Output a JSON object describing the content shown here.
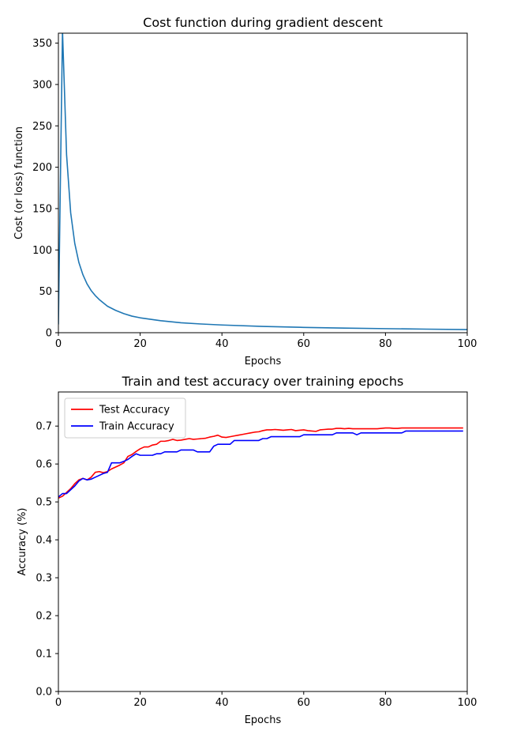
{
  "chart_data": [
    {
      "type": "line",
      "title": "Cost function during gradient descent",
      "xlabel": "Epochs",
      "ylabel": "Cost (or loss) function",
      "xlim": [
        0,
        100
      ],
      "ylim": [
        0,
        362
      ],
      "xticks": [
        "0",
        "20",
        "40",
        "60",
        "80",
        "100"
      ],
      "yticks": [
        "0",
        "50",
        "100",
        "150",
        "200",
        "250",
        "300",
        "350"
      ],
      "grid": false,
      "series": [
        {
          "color": "#1f77b4",
          "x": [
            0,
            1,
            2,
            3,
            4,
            5,
            6,
            7,
            8,
            9,
            10,
            12,
            14,
            16,
            18,
            20,
            25,
            30,
            35,
            40,
            50,
            60,
            70,
            80,
            90,
            100
          ],
          "y": [
            10,
            365,
            215,
            145,
            108,
            85,
            70,
            59,
            51,
            45,
            40,
            32,
            27,
            23,
            20,
            18,
            14.5,
            12,
            10.5,
            9.3,
            7.6,
            6.4,
            5.6,
            4.9,
            4.3,
            3.8
          ]
        }
      ]
    },
    {
      "type": "line",
      "title": "Train and test accuracy over training epochs",
      "xlabel": "Epochs",
      "ylabel": "Accuracy (%)",
      "xlim": [
        0,
        100
      ],
      "ylim": [
        0,
        0.79
      ],
      "xticks": [
        "0",
        "20",
        "40",
        "60",
        "80",
        "100"
      ],
      "yticks": [
        "0.0",
        "0.1",
        "0.2",
        "0.3",
        "0.4",
        "0.5",
        "0.6",
        "0.7"
      ],
      "grid": false,
      "legend": "top-left",
      "series": [
        {
          "name": "Test Accuracy",
          "color": "#ff0000",
          "x": [
            0,
            1,
            2,
            3,
            4,
            5,
            6,
            7,
            8,
            9,
            10,
            11,
            12,
            13,
            14,
            15,
            16,
            17,
            18,
            19,
            20,
            21,
            22,
            23,
            24,
            25,
            26,
            27,
            28,
            29,
            30,
            31,
            32,
            33,
            34,
            35,
            36,
            37,
            38,
            39,
            40,
            41,
            42,
            43,
            44,
            45,
            46,
            47,
            48,
            49,
            50,
            51,
            52,
            53,
            54,
            55,
            56,
            57,
            58,
            59,
            60,
            61,
            62,
            63,
            64,
            65,
            66,
            67,
            68,
            69,
            70,
            71,
            72,
            73,
            74,
            75,
            76,
            77,
            78,
            79,
            80,
            81,
            82,
            83,
            84,
            85,
            86,
            87,
            88,
            89,
            90,
            91,
            92,
            93,
            94,
            95,
            96,
            97,
            98,
            99
          ],
          "y": [
            0.51,
            0.515,
            0.525,
            0.535,
            0.548,
            0.558,
            0.562,
            0.558,
            0.565,
            0.578,
            0.58,
            0.577,
            0.58,
            0.587,
            0.592,
            0.597,
            0.603,
            0.62,
            0.625,
            0.633,
            0.64,
            0.645,
            0.645,
            0.65,
            0.652,
            0.66,
            0.66,
            0.662,
            0.665,
            0.662,
            0.663,
            0.665,
            0.667,
            0.665,
            0.666,
            0.667,
            0.668,
            0.671,
            0.673,
            0.676,
            0.671,
            0.67,
            0.672,
            0.674,
            0.676,
            0.678,
            0.68,
            0.682,
            0.684,
            0.685,
            0.688,
            0.69,
            0.69,
            0.691,
            0.69,
            0.689,
            0.69,
            0.691,
            0.688,
            0.689,
            0.69,
            0.688,
            0.687,
            0.686,
            0.69,
            0.691,
            0.692,
            0.692,
            0.694,
            0.694,
            0.693,
            0.694,
            0.693,
            0.693,
            0.693,
            0.693,
            0.693,
            0.693,
            0.693,
            0.694,
            0.695,
            0.695,
            0.694,
            0.694,
            0.695,
            0.695,
            0.695,
            0.695,
            0.695,
            0.695,
            0.695,
            0.695,
            0.695,
            0.695,
            0.695,
            0.695,
            0.695,
            0.695,
            0.695,
            0.695
          ]
        },
        {
          "name": "Train Accuracy",
          "color": "#0000ff",
          "x": [
            0,
            1,
            2,
            3,
            4,
            5,
            6,
            7,
            8,
            9,
            10,
            11,
            12,
            13,
            14,
            15,
            16,
            17,
            18,
            19,
            20,
            21,
            22,
            23,
            24,
            25,
            26,
            27,
            28,
            29,
            30,
            31,
            32,
            33,
            34,
            35,
            36,
            37,
            38,
            39,
            40,
            41,
            42,
            43,
            44,
            45,
            46,
            47,
            48,
            49,
            50,
            51,
            52,
            53,
            54,
            55,
            56,
            57,
            58,
            59,
            60,
            61,
            62,
            63,
            64,
            65,
            66,
            67,
            68,
            69,
            70,
            71,
            72,
            73,
            74,
            75,
            76,
            77,
            78,
            79,
            80,
            81,
            82,
            83,
            84,
            85,
            86,
            87,
            88,
            89,
            90,
            91,
            92,
            93,
            94,
            95,
            96,
            97,
            98,
            99
          ],
          "y": [
            0.513,
            0.522,
            0.522,
            0.532,
            0.542,
            0.555,
            0.562,
            0.558,
            0.56,
            0.565,
            0.57,
            0.575,
            0.578,
            0.603,
            0.603,
            0.603,
            0.607,
            0.612,
            0.62,
            0.627,
            0.623,
            0.623,
            0.623,
            0.623,
            0.627,
            0.627,
            0.632,
            0.632,
            0.632,
            0.632,
            0.637,
            0.637,
            0.637,
            0.637,
            0.632,
            0.632,
            0.632,
            0.632,
            0.647,
            0.652,
            0.652,
            0.652,
            0.652,
            0.662,
            0.662,
            0.662,
            0.662,
            0.662,
            0.662,
            0.662,
            0.667,
            0.667,
            0.672,
            0.672,
            0.672,
            0.672,
            0.672,
            0.672,
            0.672,
            0.672,
            0.677,
            0.677,
            0.677,
            0.677,
            0.677,
            0.677,
            0.677,
            0.677,
            0.682,
            0.682,
            0.682,
            0.682,
            0.682,
            0.677,
            0.682,
            0.682,
            0.682,
            0.682,
            0.682,
            0.682,
            0.682,
            0.682,
            0.682,
            0.682,
            0.682,
            0.687,
            0.687,
            0.687,
            0.687,
            0.687,
            0.687,
            0.687,
            0.687,
            0.687,
            0.687,
            0.687,
            0.687,
            0.687,
            0.687,
            0.687
          ]
        }
      ]
    }
  ]
}
